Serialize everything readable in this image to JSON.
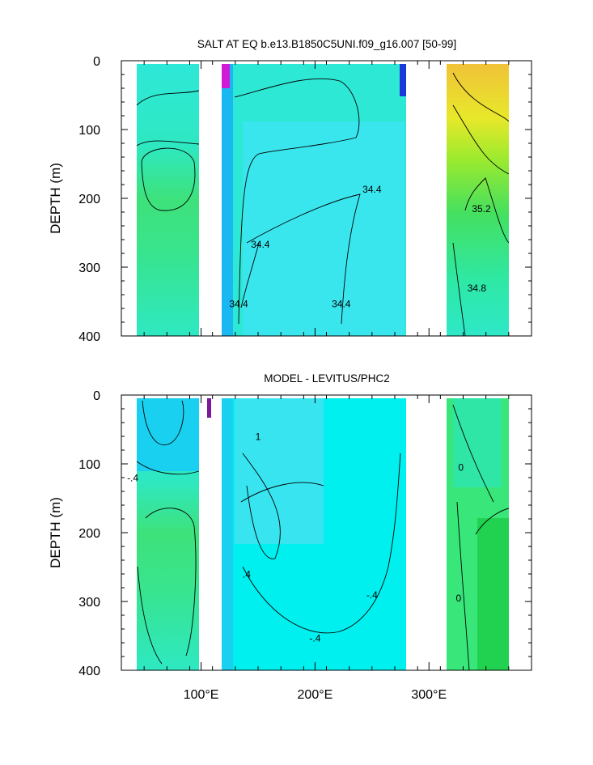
{
  "chart_data": [
    {
      "type": "heatmap",
      "title": "SALT AT EQ b.e13.B1850C5UNI.f09_g16.007 [50-99]",
      "ylabel": "DEPTH (m)",
      "xlabel": "",
      "xlim": [
        30,
        390
      ],
      "ylim": [
        0,
        400
      ],
      "y_reversed": true,
      "yticks": [
        0,
        100,
        200,
        300,
        400
      ],
      "ytick_labels": [
        "0",
        "100",
        "200",
        "300",
        "400"
      ],
      "xticks": [
        100,
        200,
        300
      ],
      "xtick_labels": [
        "",
        "",
        ""
      ],
      "contour_labels": [
        {
          "text": "34.4",
          "x": 250,
          "y": 192
        },
        {
          "text": "34.4",
          "x": 152,
          "y": 272
        },
        {
          "text": "34.4",
          "x": 133,
          "y": 358
        },
        {
          "text": "34.4",
          "x": 223,
          "y": 358
        },
        {
          "text": "35.2",
          "x": 346,
          "y": 220
        },
        {
          "text": "34.8",
          "x": 342,
          "y": 335
        }
      ],
      "regions": [
        {
          "x": [
            45,
            98
          ],
          "color": "#2ee8c2"
        },
        {
          "x": [
            118,
            128
          ],
          "color": "#1ab8f0"
        },
        {
          "x": [
            128,
            278
          ],
          "color": "#2ee8d6"
        },
        {
          "x": [
            313,
            368
          ],
          "color": "#50e070"
        }
      ]
    },
    {
      "type": "heatmap",
      "title": "MODEL - LEVITUS/PHC2",
      "ylabel": "DEPTH (m)",
      "xlabel": "",
      "xlim": [
        30,
        390
      ],
      "ylim": [
        0,
        400
      ],
      "y_reversed": true,
      "yticks": [
        0,
        100,
        200,
        300,
        400
      ],
      "ytick_labels": [
        "0",
        "100",
        "200",
        "300",
        "400"
      ],
      "xticks": [
        100,
        200,
        300
      ],
      "xtick_labels": [
        "100°E",
        "200°E",
        "300°E"
      ],
      "contour_labels": [
        {
          "text": "-.4",
          "x": 40,
          "y": 125
        },
        {
          "text": ".4",
          "x": 140,
          "y": 265
        },
        {
          "text": "-.4",
          "x": 250,
          "y": 295
        },
        {
          "text": "-.4",
          "x": 200,
          "y": 358
        },
        {
          "text": "0",
          "x": 328,
          "y": 110
        },
        {
          "text": "0",
          "x": 326,
          "y": 300
        },
        {
          "text": "1",
          "x": 150,
          "y": 65
        }
      ],
      "regions": [
        {
          "x": [
            45,
            98
          ],
          "color": "#2ee8c2"
        },
        {
          "x": [
            118,
            128
          ],
          "color": "#1ad0f0"
        },
        {
          "x": [
            128,
            278
          ],
          "color": "#00f0f0"
        },
        {
          "x": [
            313,
            368
          ],
          "color": "#38e67a"
        }
      ]
    }
  ]
}
